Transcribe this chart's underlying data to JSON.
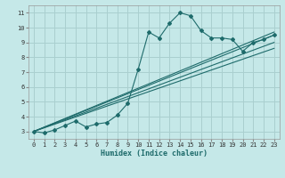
{
  "xlabel": "Humidex (Indice chaleur)",
  "ylabel": "",
  "bg_color": "#c5e8e8",
  "grid_color": "#aacfcf",
  "line_color": "#1e6b6b",
  "xlim": [
    -0.5,
    23.5
  ],
  "ylim": [
    2.5,
    11.5
  ],
  "xticks": [
    0,
    1,
    2,
    3,
    4,
    5,
    6,
    7,
    8,
    9,
    10,
    11,
    12,
    13,
    14,
    15,
    16,
    17,
    18,
    19,
    20,
    21,
    22,
    23
  ],
  "yticks": [
    3,
    4,
    5,
    6,
    7,
    8,
    9,
    10,
    11
  ],
  "main_x": [
    0,
    1,
    2,
    3,
    4,
    5,
    6,
    7,
    8,
    9,
    10,
    11,
    12,
    13,
    14,
    15,
    16,
    17,
    18,
    19,
    20,
    21,
    22,
    23
  ],
  "main_y": [
    3.0,
    2.9,
    3.1,
    3.4,
    3.7,
    3.3,
    3.5,
    3.6,
    4.1,
    4.9,
    7.2,
    9.7,
    9.3,
    10.3,
    11.0,
    10.8,
    9.8,
    9.3,
    9.3,
    9.2,
    8.4,
    9.0,
    9.2,
    9.5
  ],
  "line1_x": [
    0,
    23
  ],
  "line1_y": [
    3.0,
    9.5
  ],
  "line2_x": [
    0,
    23
  ],
  "line2_y": [
    3.0,
    9.0
  ],
  "line3_x": [
    0,
    23
  ],
  "line3_y": [
    3.0,
    8.6
  ],
  "line4_x": [
    0,
    23
  ],
  "line4_y": [
    3.0,
    9.7
  ]
}
